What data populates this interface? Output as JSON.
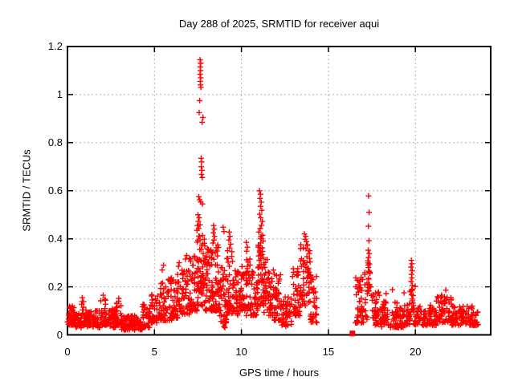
{
  "window": {
    "background": "#ffffff"
  },
  "chart_data": {
    "type": "scatter",
    "title": "Day 288 of 2025, SRMTID for receiver aqui",
    "xlabel": "GPS time / hours",
    "ylabel": "SRMTID / TECUs",
    "xlim": [
      0,
      24.33
    ],
    "ylim": [
      0,
      1.2
    ],
    "xticks": [
      0,
      5,
      10,
      15,
      20
    ],
    "yticks": [
      0,
      0.2,
      0.4,
      0.6,
      0.8,
      1,
      1.2
    ],
    "grid": true,
    "legend": "none",
    "marker": "plus",
    "marker_color": "#ff0000",
    "axis_color": "#000000",
    "grid_color": "#b0b0b0",
    "peak_points": [
      [
        7.62,
        1.145
      ],
      [
        7.66,
        1.13
      ],
      [
        7.63,
        1.115
      ],
      [
        7.65,
        1.1
      ],
      [
        7.62,
        1.085
      ],
      [
        7.66,
        1.07
      ],
      [
        7.63,
        1.055
      ],
      [
        7.65,
        1.04
      ],
      [
        7.67,
        1.03
      ],
      [
        7.6,
        0.975
      ],
      [
        7.57,
        0.925
      ],
      [
        7.79,
        0.905
      ],
      [
        7.74,
        0.885
      ],
      [
        7.68,
        0.735
      ],
      [
        7.71,
        0.72
      ],
      [
        7.69,
        0.7
      ],
      [
        7.73,
        0.685
      ],
      [
        7.7,
        0.668
      ],
      [
        7.75,
        0.655
      ],
      [
        7.55,
        0.575
      ],
      [
        7.6,
        0.562
      ],
      [
        7.66,
        0.553
      ],
      [
        7.76,
        0.545
      ],
      [
        7.5,
        0.5
      ],
      [
        7.57,
        0.487
      ],
      [
        7.52,
        0.472
      ],
      [
        7.62,
        0.458
      ],
      [
        7.55,
        0.443
      ],
      [
        7.47,
        0.455
      ],
      [
        7.44,
        0.435
      ],
      [
        8.4,
        0.455
      ],
      [
        8.44,
        0.44
      ],
      [
        8.38,
        0.425
      ],
      [
        8.46,
        0.41
      ],
      [
        8.42,
        0.395
      ],
      [
        8.36,
        0.382
      ],
      [
        8.95,
        0.448
      ],
      [
        9.0,
        0.43
      ],
      [
        9.3,
        0.428
      ],
      [
        9.34,
        0.41
      ],
      [
        9.28,
        0.395
      ],
      [
        9.38,
        0.378
      ],
      [
        9.32,
        0.362
      ],
      [
        10.28,
        0.385
      ],
      [
        10.34,
        0.365
      ],
      [
        10.3,
        0.348
      ],
      [
        11.04,
        0.6
      ],
      [
        11.1,
        0.585
      ],
      [
        11.07,
        0.568
      ],
      [
        11.14,
        0.552
      ],
      [
        11.1,
        0.535
      ],
      [
        11.17,
        0.518
      ],
      [
        11.05,
        0.502
      ],
      [
        11.11,
        0.487
      ],
      [
        11.2,
        0.472
      ],
      [
        11.15,
        0.456
      ],
      [
        11.08,
        0.443
      ],
      [
        11.0,
        0.428
      ],
      [
        11.22,
        0.415
      ],
      [
        11.12,
        0.402
      ],
      [
        13.62,
        0.42
      ],
      [
        13.7,
        0.41
      ],
      [
        13.66,
        0.398
      ],
      [
        13.74,
        0.388
      ],
      [
        13.8,
        0.375
      ],
      [
        13.56,
        0.362
      ],
      [
        13.85,
        0.35
      ],
      [
        13.9,
        0.338
      ],
      [
        17.31,
        0.578
      ],
      [
        17.34,
        0.51
      ],
      [
        17.3,
        0.452
      ],
      [
        17.33,
        0.392
      ],
      [
        17.29,
        0.352
      ],
      [
        17.35,
        0.338
      ],
      [
        17.31,
        0.322
      ],
      [
        17.27,
        0.308
      ],
      [
        17.36,
        0.295
      ],
      [
        17.3,
        0.28
      ],
      [
        17.34,
        0.265
      ],
      [
        19.77,
        0.31
      ],
      [
        19.8,
        0.296
      ],
      [
        19.75,
        0.282
      ],
      [
        19.82,
        0.267
      ],
      [
        19.78,
        0.252
      ],
      [
        19.8,
        0.237
      ],
      [
        19.76,
        0.222
      ],
      [
        19.83,
        0.206
      ],
      [
        19.79,
        0.19
      ],
      [
        18.32,
        0.172
      ],
      [
        18.68,
        0.188
      ],
      [
        19.35,
        0.175
      ],
      [
        19.99,
        0.202
      ],
      [
        21.75,
        0.186
      ],
      [
        21.5,
        0.165
      ],
      [
        2.05,
        0.165
      ],
      [
        0.85,
        0.155
      ],
      [
        2.95,
        0.152
      ],
      [
        5.45,
        0.27
      ],
      [
        5.52,
        0.29
      ],
      [
        6.42,
        0.3
      ],
      [
        6.38,
        0.285
      ],
      [
        6.78,
        0.315
      ],
      [
        6.85,
        0.33
      ],
      [
        9.0,
        0.035
      ],
      [
        9.05,
        0.03
      ],
      [
        12.55,
        0.035
      ],
      [
        4.25,
        0.022
      ]
    ],
    "square_points": [
      [
        16.38,
        0.006
      ]
    ],
    "dense_bands": [
      [
        0.0,
        0.4,
        38,
        0.04,
        0.12,
        1.5
      ],
      [
        0.4,
        0.8,
        32,
        0.03,
        0.09,
        1.5
      ],
      [
        0.8,
        1.1,
        26,
        0.04,
        0.14,
        1.6
      ],
      [
        1.1,
        1.9,
        60,
        0.03,
        0.1,
        1.5
      ],
      [
        1.9,
        2.25,
        32,
        0.04,
        0.15,
        1.8
      ],
      [
        2.25,
        2.8,
        42,
        0.03,
        0.11,
        1.5
      ],
      [
        2.8,
        3.1,
        26,
        0.04,
        0.14,
        1.8
      ],
      [
        3.1,
        4.3,
        85,
        0.02,
        0.08,
        1.4
      ],
      [
        4.3,
        4.8,
        36,
        0.03,
        0.13,
        1.5
      ],
      [
        4.8,
        5.25,
        36,
        0.05,
        0.18,
        1.6
      ],
      [
        5.25,
        5.7,
        36,
        0.06,
        0.22,
        1.7
      ],
      [
        5.7,
        6.1,
        34,
        0.06,
        0.24,
        1.7
      ],
      [
        6.1,
        6.55,
        36,
        0.07,
        0.26,
        1.6
      ],
      [
        6.55,
        7.0,
        40,
        0.08,
        0.28,
        1.6
      ],
      [
        7.0,
        7.45,
        45,
        0.1,
        0.33,
        1.5
      ],
      [
        7.45,
        7.9,
        60,
        0.12,
        0.42,
        1.3
      ],
      [
        7.9,
        8.35,
        52,
        0.1,
        0.36,
        1.5
      ],
      [
        8.35,
        8.75,
        46,
        0.1,
        0.38,
        1.5
      ],
      [
        8.75,
        9.15,
        40,
        0.05,
        0.28,
        1.6
      ],
      [
        9.15,
        9.6,
        42,
        0.08,
        0.35,
        1.5
      ],
      [
        9.6,
        10.05,
        42,
        0.08,
        0.3,
        1.5
      ],
      [
        10.05,
        10.5,
        42,
        0.08,
        0.32,
        1.5
      ],
      [
        10.5,
        10.95,
        40,
        0.08,
        0.28,
        1.5
      ],
      [
        10.95,
        11.3,
        48,
        0.12,
        0.42,
        1.2
      ],
      [
        11.3,
        11.8,
        46,
        0.08,
        0.32,
        1.4
      ],
      [
        11.8,
        12.3,
        42,
        0.06,
        0.28,
        1.5
      ],
      [
        12.3,
        12.9,
        46,
        0.04,
        0.16,
        1.5
      ],
      [
        12.9,
        13.4,
        42,
        0.08,
        0.28,
        1.4
      ],
      [
        13.4,
        13.95,
        48,
        0.12,
        0.38,
        1.2
      ],
      [
        13.95,
        14.35,
        36,
        0.05,
        0.25,
        1.5
      ],
      [
        16.55,
        17.25,
        58,
        0.05,
        0.26,
        1.5
      ],
      [
        17.25,
        17.45,
        16,
        0.15,
        0.3,
        1.2
      ],
      [
        17.45,
        18.0,
        42,
        0.04,
        0.18,
        1.5
      ],
      [
        18.0,
        19.3,
        90,
        0.03,
        0.14,
        1.5
      ],
      [
        19.3,
        19.7,
        30,
        0.04,
        0.13,
        1.5
      ],
      [
        19.7,
        19.9,
        14,
        0.08,
        0.2,
        1.3
      ],
      [
        19.9,
        21.2,
        88,
        0.04,
        0.13,
        1.5
      ],
      [
        21.2,
        22.1,
        62,
        0.05,
        0.16,
        1.5
      ],
      [
        22.1,
        23.3,
        78,
        0.04,
        0.12,
        1.5
      ],
      [
        23.3,
        23.65,
        20,
        0.04,
        0.1,
        1.5
      ]
    ]
  }
}
